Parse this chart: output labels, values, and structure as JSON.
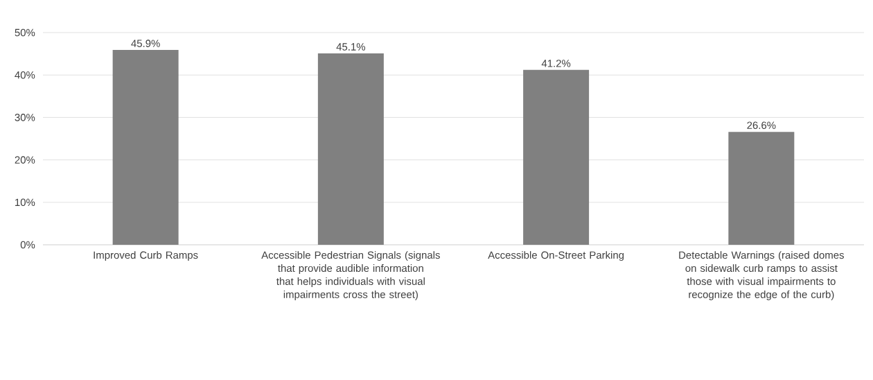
{
  "chart_data": {
    "type": "bar",
    "categories": [
      "Improved Curb Ramps",
      "Accessible Pedestrian Signals (signals that provide audible information that helps individuals with visual impairments cross the street)",
      "Accessible On-Street Parking",
      "Detectable Warnings (raised domes on sidewalk curb ramps to assist those with visual impairments to recognize the edge of the curb)"
    ],
    "values": [
      45.9,
      45.1,
      41.2,
      26.6
    ],
    "value_labels": [
      "45.9%",
      "45.1%",
      "41.2%",
      "26.6%"
    ],
    "color": "#808080",
    "ylim": [
      0,
      50
    ],
    "yticks": [
      {
        "value": 0,
        "label": "0%"
      },
      {
        "value": 10,
        "label": "10%"
      },
      {
        "value": 20,
        "label": "20%"
      },
      {
        "value": 30,
        "label": "30%"
      },
      {
        "value": 40,
        "label": "40%"
      },
      {
        "value": 50,
        "label": "50%"
      }
    ],
    "grid": "y"
  }
}
